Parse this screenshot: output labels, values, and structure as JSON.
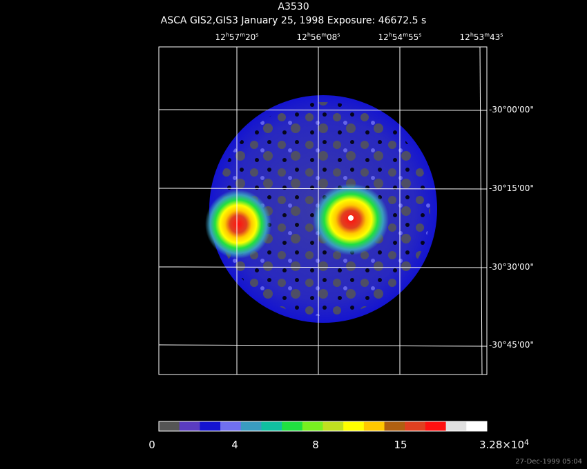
{
  "title": "A3530",
  "subtitle": "ASCA GIS2,GIS3 January 25, 1998 Exposure: 46672.5 s",
  "ra_labels": [
    [
      "12",
      "h",
      "57",
      "m",
      "20",
      "s"
    ],
    [
      "12",
      "h",
      "56",
      "m",
      "08",
      "s"
    ],
    [
      "12",
      "h",
      "54",
      "m",
      "55",
      "s"
    ],
    [
      "12",
      "h",
      "53",
      "m",
      "43",
      "s"
    ]
  ],
  "dec_labels": [
    "-30°00'00\"",
    "-30°15'00\"",
    "-30°30'00\"",
    "-30°45'00\""
  ],
  "colorbar": {
    "colors": [
      "#555555",
      "#5a3cc0",
      "#1414d0",
      "#7070f0",
      "#3a9cc0",
      "#10c0a0",
      "#20e040",
      "#78f020",
      "#c0e020",
      "#ffff00",
      "#ffc800",
      "#b06010",
      "#e04020",
      "#ff1010",
      "#e0e0e0",
      "#ffffff"
    ],
    "labels": [
      [
        "0"
      ],
      [
        "4"
      ],
      [
        "8"
      ],
      [
        "15"
      ],
      [
        "3.28×10",
        "4"
      ]
    ]
  },
  "footer": "27-Dec-1999 05:04"
}
